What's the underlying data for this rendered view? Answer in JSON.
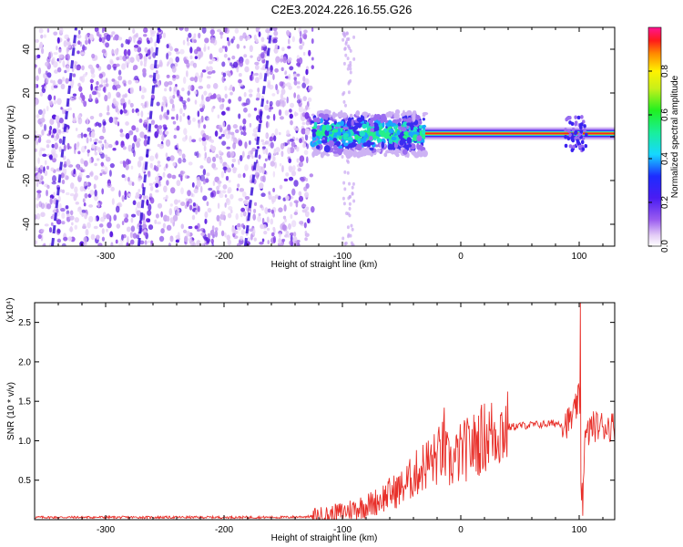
{
  "title": "C2E3.2024.226.16.55.G26",
  "chart_data": [
    {
      "type": "heatmap",
      "xlabel": "Height of straight line (km)",
      "ylabel": "Frequency (Hz)",
      "xlim": [
        -360,
        130
      ],
      "ylim": [
        -50,
        50
      ],
      "x_ticks": [
        "-300",
        "-200",
        "-100",
        "0",
        "100"
      ],
      "x_tick_values": [
        -300,
        -200,
        -100,
        0,
        100
      ],
      "y_ticks": [
        "40",
        "20",
        "0",
        "-20",
        "-40"
      ],
      "y_tick_values": [
        40,
        20,
        0,
        -20,
        -40
      ],
      "colorbar": {
        "label": "Normalized spectral amplitude",
        "range": [
          0,
          1
        ],
        "ticks": [
          "0.0",
          "0.2",
          "0.4",
          "0.6",
          "0.8"
        ],
        "tick_values": [
          0.0,
          0.2,
          0.4,
          0.6,
          0.8
        ]
      },
      "features": {
        "noise_region_x": [
          -360,
          -125
        ],
        "signal_region_x": [
          -125,
          130
        ],
        "carrier_frequency_hz": 1.5,
        "streaks": [
          {
            "x0": -345,
            "x1": -325,
            "y0": -50,
            "y1": 50
          },
          {
            "x0": -272,
            "x1": -255,
            "y0": -50,
            "y1": 50
          },
          {
            "x0": -182,
            "x1": -160,
            "y0": -50,
            "y1": 50
          }
        ]
      },
      "grid": false
    },
    {
      "type": "line",
      "xlabel": "Height of straight line (km)",
      "ylabel": "SNR (10 * v/v)",
      "multiplier_label": "(x10⁴)",
      "xlim": [
        -360,
        130
      ],
      "ylim": [
        0,
        2.75
      ],
      "x_ticks": [
        "-300",
        "-200",
        "-100",
        "0",
        "100"
      ],
      "x_tick_values": [
        -300,
        -200,
        -100,
        0,
        100
      ],
      "y_ticks": [
        "0.5",
        "1.0",
        "1.5",
        "2.0",
        "2.5"
      ],
      "y_tick_values": [
        0.5,
        1.0,
        1.5,
        2.0,
        2.5
      ],
      "color": "#e8302a",
      "x": [
        -360,
        -300,
        -250,
        -200,
        -150,
        -125,
        -110,
        -100,
        -90,
        -75,
        -60,
        -50,
        -40,
        -30,
        -20,
        -15,
        -10,
        -5,
        0,
        10,
        20,
        30,
        40,
        50,
        60,
        70,
        80,
        90,
        95,
        100,
        102,
        105,
        110,
        120,
        130
      ],
      "y": [
        0.03,
        0.03,
        0.03,
        0.03,
        0.03,
        0.04,
        0.06,
        0.1,
        0.14,
        0.2,
        0.33,
        0.4,
        0.55,
        0.7,
        0.78,
        0.9,
        0.7,
        0.75,
        0.85,
        0.93,
        1.05,
        1.12,
        1.17,
        1.19,
        1.2,
        1.21,
        1.22,
        1.23,
        1.3,
        1.55,
        0.3,
        1.0,
        1.18,
        1.19,
        1.18
      ],
      "peaks": [
        {
          "x": -14,
          "y": 1.42
        },
        {
          "x": 101,
          "y": 2.75
        },
        {
          "x": 103,
          "y": 0.05
        }
      ],
      "grid": false
    }
  ]
}
